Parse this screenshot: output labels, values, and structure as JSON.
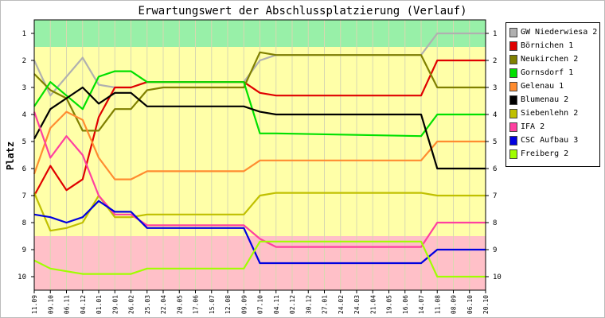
{
  "chart_data": {
    "type": "line",
    "title": "Erwartungswert der Abschlussplatzierung (Verlauf)",
    "ylabel": "Platz",
    "xlabel": "",
    "ylim": [
      10.5,
      0.5
    ],
    "yticks": [
      1,
      2,
      3,
      4,
      5,
      6,
      7,
      8,
      9,
      10
    ],
    "x_labels": [
      "11.09",
      "09.10",
      "06.11",
      "04.12",
      "01.01",
      "29.01",
      "26.02",
      "25.03",
      "22.04",
      "20.05",
      "17.06",
      "15.07",
      "12.08",
      "09.09",
      "07.10",
      "04.11",
      "02.12",
      "30.12",
      "27.01",
      "24.02",
      "24.03",
      "21.04",
      "19.05",
      "16.06",
      "14.07",
      "11.08",
      "08.09",
      "06.10",
      "20.10"
    ],
    "bands": [
      {
        "from": 0.5,
        "to": 1.5,
        "color": "#98f0a8"
      },
      {
        "from": 1.5,
        "to": 8.5,
        "color": "#ffffa8"
      },
      {
        "from": 8.5,
        "to": 10.5,
        "color": "#ffc0c8"
      }
    ],
    "series": [
      {
        "name": "GW Niederwiesa 2",
        "color": "#b0b0b0",
        "values": [
          [
            0,
            2.0
          ],
          [
            1,
            3.3
          ],
          [
            2,
            2.6
          ],
          [
            3,
            1.9
          ],
          [
            4,
            2.9
          ],
          [
            5,
            3.0
          ],
          [
            6,
            3.0
          ],
          [
            7,
            2.8
          ],
          [
            8,
            2.8
          ],
          [
            10,
            2.8
          ],
          [
            12,
            2.8
          ],
          [
            13,
            2.8
          ],
          [
            14,
            2.0
          ],
          [
            15,
            1.8
          ],
          [
            24,
            1.8
          ],
          [
            25,
            1.0
          ],
          [
            28,
            1.0
          ]
        ]
      },
      {
        "name": "Börnichen 1",
        "color": "#e00000",
        "values": [
          [
            0,
            7.0
          ],
          [
            1,
            5.9
          ],
          [
            2,
            6.8
          ],
          [
            3,
            6.4
          ],
          [
            4,
            4.1
          ],
          [
            5,
            3.0
          ],
          [
            6,
            3.0
          ],
          [
            7,
            2.8
          ],
          [
            8,
            2.8
          ],
          [
            12,
            2.8
          ],
          [
            13,
            2.8
          ],
          [
            14,
            3.2
          ],
          [
            15,
            3.3
          ],
          [
            24,
            3.3
          ],
          [
            25,
            2.0
          ],
          [
            28,
            2.0
          ]
        ]
      },
      {
        "name": "Neukirchen 2",
        "color": "#808000",
        "values": [
          [
            0,
            2.5
          ],
          [
            1,
            3.1
          ],
          [
            2,
            3.4
          ],
          [
            3,
            4.6
          ],
          [
            4,
            4.6
          ],
          [
            5,
            3.8
          ],
          [
            6,
            3.8
          ],
          [
            7,
            3.1
          ],
          [
            8,
            3.0
          ],
          [
            13,
            3.0
          ],
          [
            14,
            1.7
          ],
          [
            15,
            1.8
          ],
          [
            24,
            1.8
          ],
          [
            25,
            3.0
          ],
          [
            28,
            3.0
          ]
        ]
      },
      {
        "name": "Gornsdorf 1",
        "color": "#00e000",
        "values": [
          [
            0,
            3.7
          ],
          [
            1,
            2.8
          ],
          [
            2,
            3.3
          ],
          [
            3,
            3.8
          ],
          [
            4,
            2.6
          ],
          [
            5,
            2.4
          ],
          [
            6,
            2.4
          ],
          [
            7,
            2.8
          ],
          [
            8,
            2.8
          ],
          [
            12,
            2.8
          ],
          [
            13,
            2.8
          ],
          [
            14,
            4.7
          ],
          [
            15,
            4.7
          ],
          [
            24,
            4.8
          ],
          [
            25,
            4.0
          ],
          [
            28,
            4.0
          ]
        ]
      },
      {
        "name": "Gelenau 1",
        "color": "#ff8c30",
        "values": [
          [
            0,
            6.2
          ],
          [
            1,
            4.5
          ],
          [
            2,
            3.9
          ],
          [
            3,
            4.2
          ],
          [
            4,
            5.6
          ],
          [
            5,
            6.4
          ],
          [
            6,
            6.4
          ],
          [
            7,
            6.1
          ],
          [
            8,
            6.1
          ],
          [
            12,
            6.1
          ],
          [
            13,
            6.1
          ],
          [
            14,
            5.7
          ],
          [
            15,
            5.7
          ],
          [
            24,
            5.7
          ],
          [
            25,
            5.0
          ],
          [
            28,
            5.0
          ]
        ]
      },
      {
        "name": "Blumenau 2",
        "color": "#000000",
        "values": [
          [
            0,
            4.9
          ],
          [
            1,
            3.8
          ],
          [
            2,
            3.4
          ],
          [
            3,
            3.0
          ],
          [
            4,
            3.6
          ],
          [
            5,
            3.2
          ],
          [
            6,
            3.2
          ],
          [
            7,
            3.7
          ],
          [
            8,
            3.7
          ],
          [
            12,
            3.7
          ],
          [
            13,
            3.7
          ],
          [
            14,
            3.9
          ],
          [
            15,
            4.0
          ],
          [
            24,
            4.0
          ],
          [
            25,
            6.0
          ],
          [
            28,
            6.0
          ]
        ]
      },
      {
        "name": "Siebenlehn 2",
        "color": "#c0c000",
        "values": [
          [
            0,
            6.9
          ],
          [
            1,
            8.3
          ],
          [
            2,
            8.2
          ],
          [
            3,
            8.0
          ],
          [
            4,
            7.0
          ],
          [
            5,
            7.8
          ],
          [
            6,
            7.8
          ],
          [
            7,
            7.7
          ],
          [
            8,
            7.7
          ],
          [
            12,
            7.7
          ],
          [
            13,
            7.7
          ],
          [
            14,
            7.0
          ],
          [
            15,
            6.9
          ],
          [
            24,
            6.9
          ],
          [
            25,
            7.0
          ],
          [
            28,
            7.0
          ]
        ]
      },
      {
        "name": "IFA 2",
        "color": "#ff40a0",
        "values": [
          [
            0,
            3.9
          ],
          [
            1,
            5.6
          ],
          [
            2,
            4.8
          ],
          [
            3,
            5.5
          ],
          [
            4,
            7.0
          ],
          [
            5,
            7.7
          ],
          [
            6,
            7.7
          ],
          [
            7,
            8.1
          ],
          [
            8,
            8.1
          ],
          [
            12,
            8.1
          ],
          [
            13,
            8.1
          ],
          [
            14,
            8.6
          ],
          [
            15,
            8.9
          ],
          [
            24,
            8.9
          ],
          [
            25,
            8.0
          ],
          [
            28,
            8.0
          ]
        ]
      },
      {
        "name": "CSC Aufbau 3",
        "color": "#0000e0",
        "values": [
          [
            0,
            7.7
          ],
          [
            1,
            7.8
          ],
          [
            2,
            8.0
          ],
          [
            3,
            7.8
          ],
          [
            4,
            7.2
          ],
          [
            5,
            7.6
          ],
          [
            6,
            7.6
          ],
          [
            7,
            8.2
          ],
          [
            8,
            8.2
          ],
          [
            12,
            8.2
          ],
          [
            13,
            8.2
          ],
          [
            14,
            9.5
          ],
          [
            15,
            9.5
          ],
          [
            24,
            9.5
          ],
          [
            25,
            9.0
          ],
          [
            28,
            9.0
          ]
        ]
      },
      {
        "name": "Freiberg 2",
        "color": "#a0ff00",
        "values": [
          [
            0,
            9.4
          ],
          [
            1,
            9.7
          ],
          [
            2,
            9.8
          ],
          [
            3,
            9.9
          ],
          [
            4,
            9.9
          ],
          [
            5,
            9.9
          ],
          [
            6,
            9.9
          ],
          [
            7,
            9.7
          ],
          [
            8,
            9.7
          ],
          [
            12,
            9.7
          ],
          [
            13,
            9.7
          ],
          [
            14,
            8.7
          ],
          [
            15,
            8.7
          ],
          [
            24,
            8.7
          ],
          [
            25,
            10.0
          ],
          [
            28,
            10.0
          ]
        ]
      }
    ]
  }
}
